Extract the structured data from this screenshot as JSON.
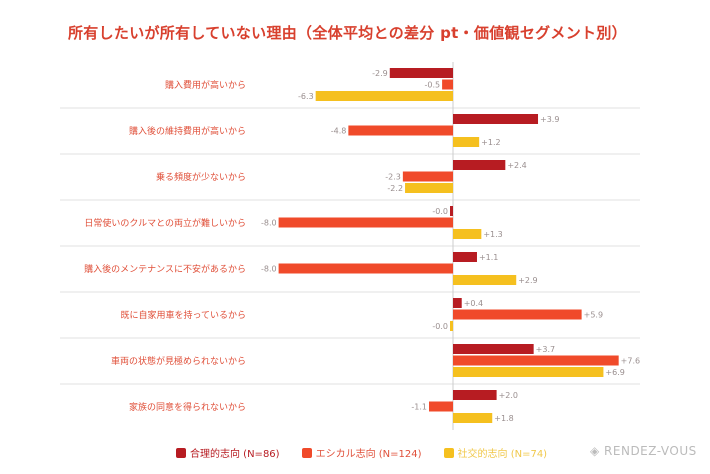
{
  "chart_data": {
    "type": "bar",
    "orientation": "horizontal",
    "title": "所有したいが所有していない理由（全体平均との差分 pt・価値観セグメント別）",
    "categories": [
      "購入費用が高いから",
      "購入後の維持費用が高いから",
      "乗る頻度が少ないから",
      "日常使いのクルマとの両立が難しいから",
      "購入後のメンテナンスに不安があるから",
      "既に自家用車を持っているから",
      "車両の状態が見極められないから",
      "家族の同意を得られないから"
    ],
    "series": [
      {
        "name": "合理的志向 (N=86)",
        "color": "#b71c22",
        "values": [
          -2.9,
          3.9,
          2.4,
          -0.0,
          1.1,
          0.4,
          3.7,
          2.0
        ],
        "labels": [
          "-2.9",
          "+3.9",
          "+2.4",
          "-0.0",
          "+1.1",
          "+0.4",
          "+3.7",
          "+2.0"
        ]
      },
      {
        "name": "エシカル志向 (N=124)",
        "color": "#f04a2a",
        "values": [
          -0.5,
          -4.8,
          -2.3,
          -8.0,
          -8.0,
          5.9,
          7.6,
          -1.1
        ],
        "labels": [
          "-0.5",
          "-4.8",
          "-2.3",
          "-8.0",
          "-8.0",
          "+5.9",
          "+7.6",
          "-1.1"
        ]
      },
      {
        "name": "社交的志向 (N=74)",
        "color": "#f5c01f",
        "values": [
          -6.3,
          1.2,
          -2.2,
          1.3,
          2.9,
          -0.0,
          6.9,
          1.8
        ],
        "labels": [
          "-6.3",
          "+1.2",
          "-2.2",
          "+1.3",
          "+2.9",
          "-0.0",
          "+6.9",
          "+1.8"
        ]
      }
    ],
    "xlim": [
      -8,
      8
    ],
    "legend_position": "bottom"
  },
  "brand": "RENDEZ-VOUS"
}
